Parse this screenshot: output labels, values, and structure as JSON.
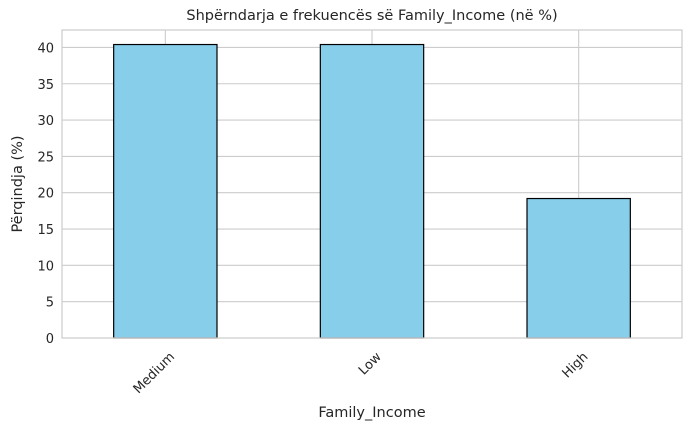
{
  "chart_data": {
    "type": "bar",
    "title": "Shpërndarja e frekuencës së Family_Income (në %)",
    "xlabel": "Family_Income",
    "ylabel": "Përqindja (%)",
    "categories": [
      "Medium",
      "Low",
      "High"
    ],
    "values": [
      40.4,
      40.4,
      19.2
    ],
    "ylim": [
      0,
      42.4
    ],
    "yticks": [
      "0",
      "5",
      "10",
      "15",
      "20",
      "25",
      "30",
      "35",
      "40"
    ],
    "grid": true,
    "legend": "none",
    "colors": {
      "bar_fill": "#87ceeb",
      "bar_edge": "#000000",
      "grid": "#cccccc",
      "axes_edge": "#cccccc",
      "text": "#262626",
      "background": "#ffffff"
    }
  }
}
